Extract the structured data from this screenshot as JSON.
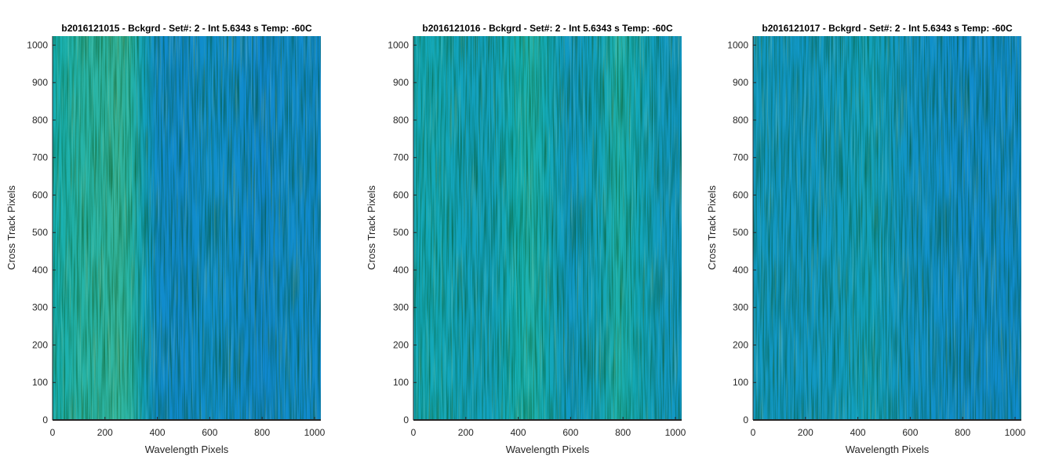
{
  "chart_data": [
    {
      "type": "heatmap",
      "title": "b2016121015 - Bckgrd - Set#: 2 - Int 5.6343 s Temp: -60C",
      "xlabel": "Wavelength Pixels",
      "ylabel": "Cross Track Pixels",
      "xlim": [
        0,
        1024
      ],
      "ylim": [
        0,
        1024
      ],
      "xticks": [
        0,
        200,
        400,
        600,
        800,
        1000
      ],
      "yticks": [
        0,
        100,
        200,
        300,
        400,
        500,
        600,
        700,
        800,
        900,
        1000
      ],
      "grid": false,
      "colormap": "parula",
      "column_profile": {
        "x": [
          0,
          100,
          200,
          250,
          300,
          350,
          400,
          500,
          600,
          700,
          800,
          900,
          1024
        ],
        "level": [
          0.55,
          0.6,
          0.62,
          0.64,
          0.6,
          0.45,
          0.3,
          0.28,
          0.32,
          0.3,
          0.27,
          0.3,
          0.28
        ]
      }
    },
    {
      "type": "heatmap",
      "title": "b2016121016 - Bckgrd - Set#: 2 - Int 5.6343 s Temp: -60C",
      "xlabel": "Wavelength Pixels",
      "ylabel": "Cross Track Pixels",
      "xlim": [
        0,
        1024
      ],
      "ylim": [
        0,
        1024
      ],
      "xticks": [
        0,
        200,
        400,
        600,
        800,
        1000
      ],
      "yticks": [
        0,
        100,
        200,
        300,
        400,
        500,
        600,
        700,
        800,
        900,
        1000
      ],
      "grid": false,
      "colormap": "parula",
      "column_profile": {
        "x": [
          0,
          100,
          200,
          300,
          400,
          450,
          500,
          600,
          700,
          780,
          850,
          950,
          1024
        ],
        "level": [
          0.5,
          0.5,
          0.45,
          0.45,
          0.55,
          0.58,
          0.52,
          0.38,
          0.45,
          0.58,
          0.5,
          0.4,
          0.38
        ]
      }
    },
    {
      "type": "heatmap",
      "title": "b2016121017 - Bckgrd - Set#: 2 - Int 5.6343 s Temp: -60C",
      "xlabel": "Wavelength Pixels",
      "ylabel": "Cross Track Pixels",
      "xlim": [
        0,
        1024
      ],
      "ylim": [
        0,
        1024
      ],
      "xticks": [
        0,
        200,
        400,
        600,
        800,
        1000
      ],
      "yticks": [
        0,
        100,
        200,
        300,
        400,
        500,
        600,
        700,
        800,
        900,
        1000
      ],
      "grid": false,
      "colormap": "parula",
      "column_profile": {
        "x": [
          0,
          100,
          200,
          300,
          400,
          450,
          500,
          600,
          700,
          800,
          900,
          1024
        ],
        "level": [
          0.4,
          0.38,
          0.38,
          0.4,
          0.44,
          0.46,
          0.42,
          0.35,
          0.33,
          0.3,
          0.3,
          0.3
        ]
      }
    }
  ]
}
